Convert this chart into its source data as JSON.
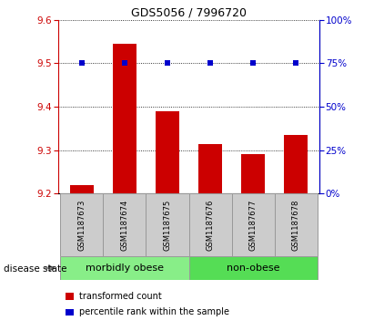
{
  "title": "GDS5056 / 7996720",
  "samples": [
    "GSM1187673",
    "GSM1187674",
    "GSM1187675",
    "GSM1187676",
    "GSM1187677",
    "GSM1187678"
  ],
  "bar_values": [
    9.22,
    9.545,
    9.39,
    9.315,
    9.29,
    9.335
  ],
  "percentile_values": [
    75,
    75,
    75,
    75,
    75,
    75
  ],
  "ylim_left": [
    9.2,
    9.6
  ],
  "yticks_left": [
    9.2,
    9.3,
    9.4,
    9.5,
    9.6
  ],
  "yticks_right": [
    0,
    25,
    50,
    75,
    100
  ],
  "ylim_right": [
    0,
    100
  ],
  "bar_color": "#cc0000",
  "dot_color": "#0000cc",
  "groups": [
    {
      "label": "morbidly obese",
      "indices": [
        0,
        1,
        2
      ],
      "color": "#88ee88"
    },
    {
      "label": "non-obese",
      "indices": [
        3,
        4,
        5
      ],
      "color": "#55dd55"
    }
  ],
  "disease_state_label": "disease state",
  "legend_items": [
    {
      "color": "#cc0000",
      "label": "transformed count"
    },
    {
      "color": "#0000cc",
      "label": "percentile rank within the sample"
    }
  ],
  "bar_width": 0.55,
  "ybase": 9.2,
  "sample_box_color": "#cccccc",
  "sample_box_edge": "#999999",
  "grid_color": "black",
  "title_fontsize": 9,
  "tick_fontsize": 7.5,
  "sample_fontsize": 6,
  "group_fontsize": 8,
  "legend_fontsize": 7
}
